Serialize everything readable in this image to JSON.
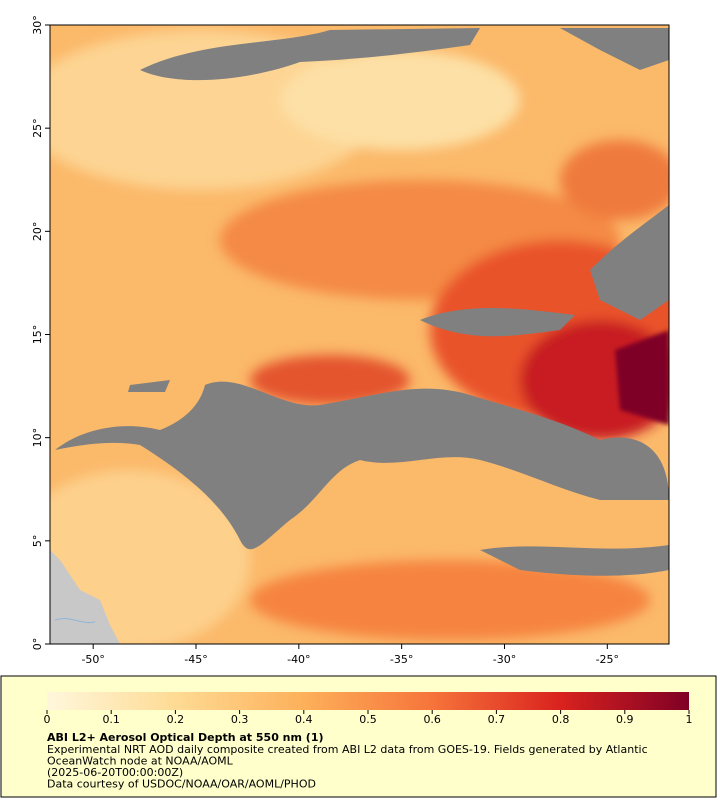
{
  "map": {
    "xlim": [
      -52.1,
      -22
    ],
    "ylim": [
      0,
      30
    ],
    "xticks": [
      {
        "value": -50,
        "label": "-50°"
      },
      {
        "value": -45,
        "label": "-45°"
      },
      {
        "value": -40,
        "label": "-40°"
      },
      {
        "value": -35,
        "label": "-35°"
      },
      {
        "value": -30,
        "label": "-30°"
      },
      {
        "value": -25,
        "label": "-25°"
      }
    ],
    "yticks": [
      {
        "value": 0,
        "label": "0°"
      },
      {
        "value": 5,
        "label": "5°"
      },
      {
        "value": 10,
        "label": "10°"
      },
      {
        "value": 15,
        "label": "15°"
      },
      {
        "value": 20,
        "label": "20°"
      },
      {
        "value": 25,
        "label": "25°"
      },
      {
        "value": 30,
        "label": "30°"
      }
    ]
  },
  "colorbar": {
    "range": [
      0,
      1
    ],
    "ticks": [
      0,
      0.1,
      0.2,
      0.3,
      0.4,
      0.5,
      0.6,
      0.7,
      0.8,
      0.9,
      1
    ]
  },
  "legend": {
    "title": "ABI L2+ Aerosol Optical Depth at 550 nm (1)",
    "lines": [
      "Experimental NRT AOD daily composite created from ABI L2 data from GOES-19. Fields generated by Atlantic",
      "OceanWatch node at NOAA/AOML",
      "(2025-06-20T00:00:00Z)",
      "Data courtesy of USDOC/NOAA/OAR/AOML/PHOD"
    ]
  }
}
